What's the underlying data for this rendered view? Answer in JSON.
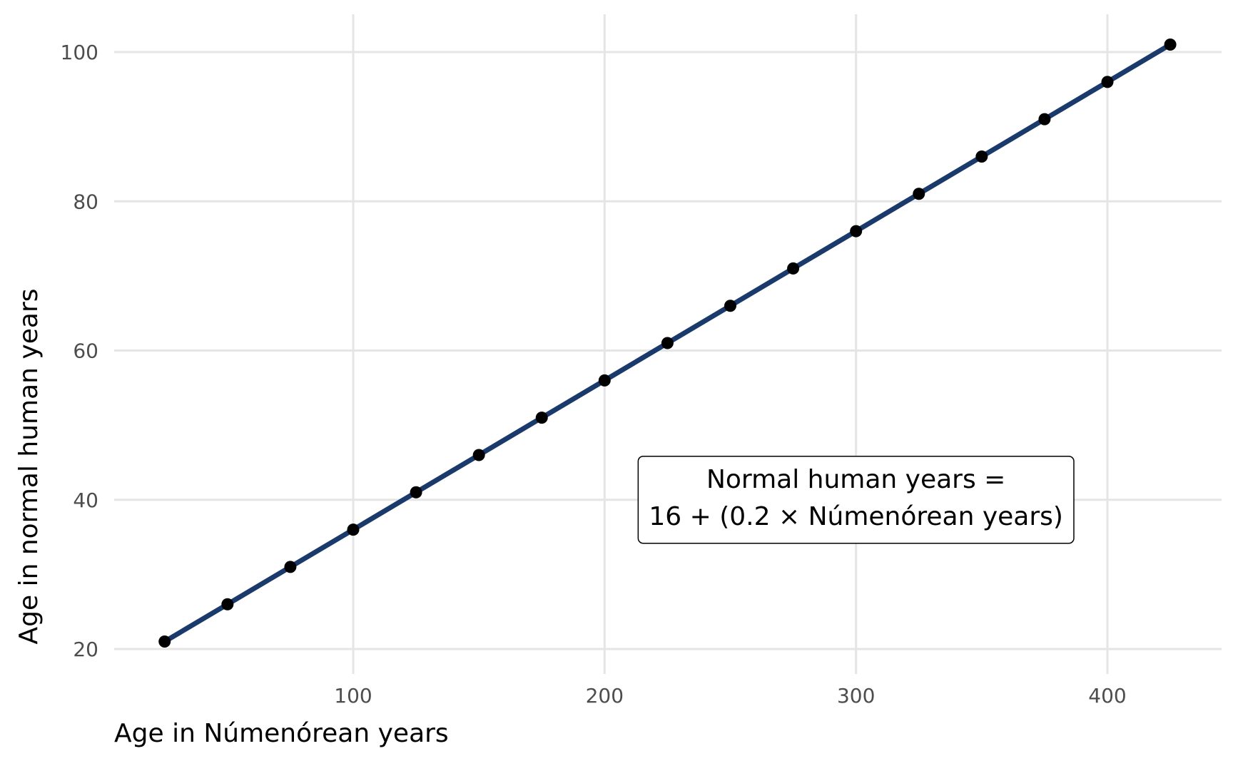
{
  "chart_data": {
    "type": "line",
    "title": "",
    "xlabel": "Age in Númenórean years",
    "ylabel": "Age in normal human years",
    "xlim": [
      15,
      440
    ],
    "ylim": [
      16,
      103
    ],
    "x_ticks": [
      100,
      200,
      300,
      400
    ],
    "y_ticks": [
      20,
      40,
      60,
      80,
      100
    ],
    "grid": true,
    "series": [
      {
        "x": [
          25,
          50,
          75,
          100,
          125,
          150,
          175,
          200,
          225,
          250,
          275,
          300,
          325,
          350,
          375,
          400,
          425
        ],
        "y": [
          21,
          26,
          31,
          36,
          41,
          46,
          51,
          56,
          61,
          66,
          71,
          76,
          81,
          86,
          91,
          96,
          101
        ],
        "line_color": "#1a3a6b",
        "point_color": "#000000"
      }
    ],
    "annotation": {
      "lines": [
        "Normal human years =",
        "16 + (0.2 × Númenórean years)"
      ],
      "x": 300,
      "y": 40
    }
  }
}
